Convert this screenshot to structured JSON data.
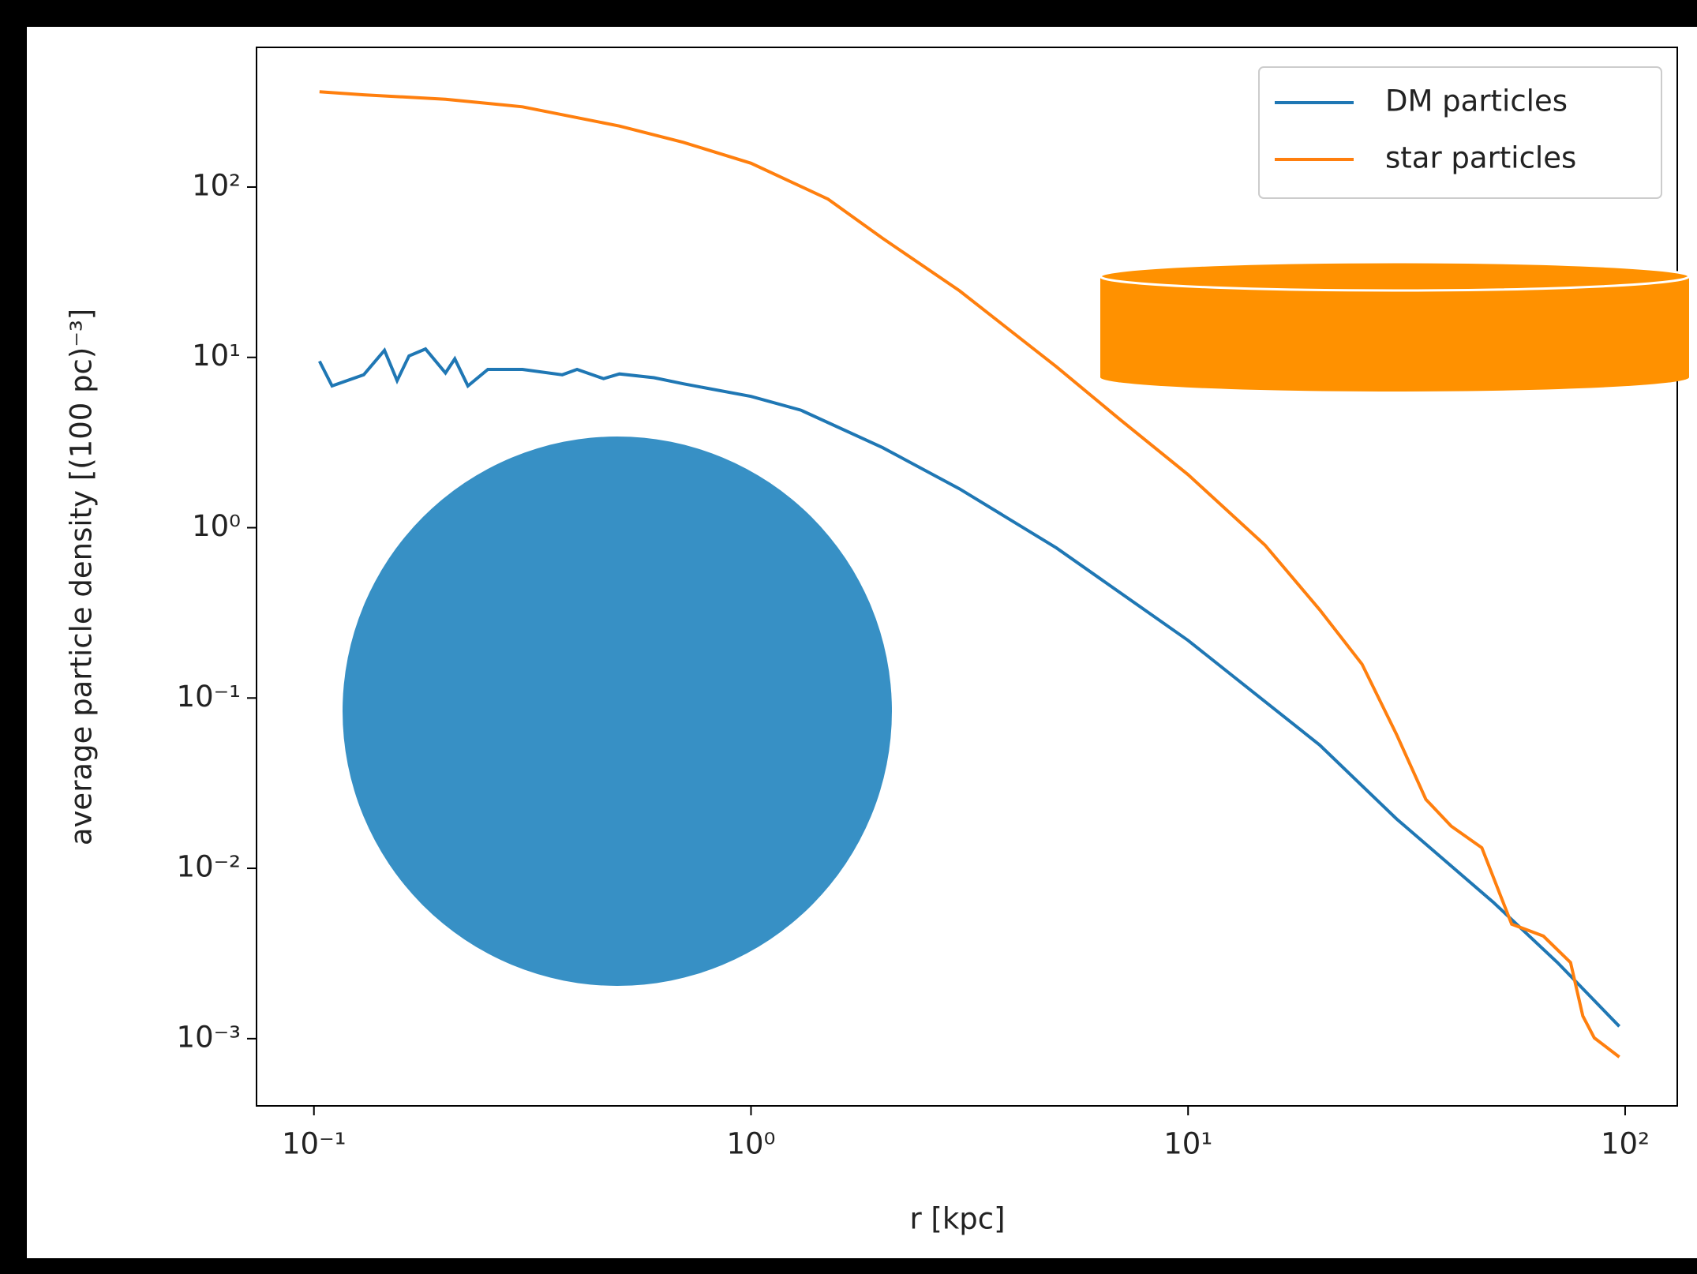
{
  "chart_data": {
    "type": "line",
    "xlabel": "r [kpc]",
    "ylabel": "average particle density [(100 pc)⁻³]",
    "xscale": "log",
    "yscale": "log",
    "xlim": [
      0.0739,
      131.6
    ],
    "ylim": [
      0.000403,
      661
    ],
    "xticks": [
      {
        "value": 0.1,
        "label": "10⁻¹"
      },
      {
        "value": 1,
        "label": "10⁰"
      },
      {
        "value": 10,
        "label": "10¹"
      },
      {
        "value": 100,
        "label": "10²"
      }
    ],
    "yticks": [
      {
        "value": 0.001,
        "label": "10⁻³"
      },
      {
        "value": 0.01,
        "label": "10⁻²"
      },
      {
        "value": 0.1,
        "label": "10⁻¹"
      },
      {
        "value": 1,
        "label": "10⁰"
      },
      {
        "value": 10,
        "label": "10¹"
      },
      {
        "value": 100,
        "label": "10²"
      }
    ],
    "legend": "upper right",
    "series": [
      {
        "name": "DM particles",
        "color": "#1f77b4",
        "x": [
          0.103,
          0.11,
          0.13,
          0.145,
          0.155,
          0.165,
          0.18,
          0.2,
          0.21,
          0.225,
          0.25,
          0.3,
          0.37,
          0.4,
          0.46,
          0.5,
          0.6,
          0.7,
          1.0,
          1.3,
          2,
          3,
          5,
          10,
          20,
          30,
          50,
          70,
          97
        ],
        "values": [
          9.5,
          6.8,
          7.9,
          11,
          7.3,
          10.2,
          11.2,
          8.1,
          9.8,
          6.8,
          8.5,
          8.5,
          7.9,
          8.5,
          7.5,
          8.0,
          7.6,
          7.0,
          5.9,
          4.9,
          2.95,
          1.69,
          0.76,
          0.218,
          0.053,
          0.0195,
          0.0063,
          0.0028,
          0.00118
        ]
      },
      {
        "name": "star particles",
        "color": "#ff7f0e",
        "x": [
          0.103,
          0.13,
          0.2,
          0.3,
          0.5,
          0.7,
          1.0,
          1.5,
          2,
          3,
          5,
          7,
          10,
          15,
          20,
          25,
          30,
          35,
          40,
          47,
          55,
          65,
          75,
          80,
          85,
          97
        ],
        "values": [
          363,
          348,
          328,
          296,
          228,
          183,
          138,
          85,
          50,
          24.6,
          8.8,
          4.3,
          2.05,
          0.79,
          0.33,
          0.158,
          0.061,
          0.0254,
          0.0177,
          0.0132,
          0.0047,
          0.004,
          0.0028,
          0.00136,
          0.00101,
          0.00078
        ]
      }
    ]
  }
}
